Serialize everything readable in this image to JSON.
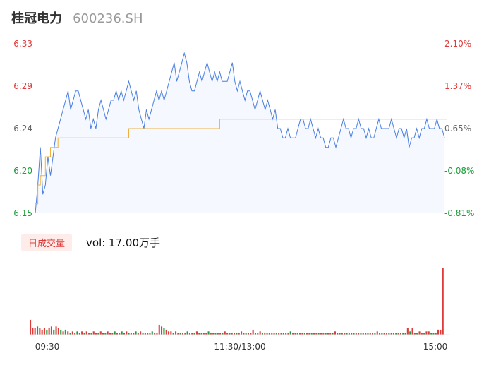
{
  "header": {
    "name": "桂冠电力",
    "code": "600236.SH"
  },
  "volume": {
    "tab_label": "日成交量",
    "readout": "vol: 17.00万手"
  },
  "colors": {
    "price_line": "#4a7fe0",
    "avg_line": "#f0b040",
    "up": "#e03b3b",
    "down": "#1a9e3a",
    "area_fill": "#f5f8ff",
    "prev_close_tick": "#666666"
  },
  "chart_data": {
    "type": "line",
    "title": "",
    "y_left_ticks": [
      "6.33",
      "6.29",
      "6.24",
      "6.20",
      "6.15"
    ],
    "y_right_ticks": [
      "2.10%",
      "1.37%",
      "0.65%",
      "-0.08%",
      "-0.81%"
    ],
    "ylim": [
      6.15,
      6.33
    ],
    "x_ticks": [
      "09:30",
      "11:30/13:00",
      "15:00"
    ],
    "grid": false,
    "series": [
      {
        "values": [
          6.15,
          6.18,
          6.22,
          6.17,
          6.18,
          6.21,
          6.19,
          6.21,
          6.23,
          6.24,
          6.25,
          6.26,
          6.27,
          6.28,
          6.26,
          6.27,
          6.28,
          6.28,
          6.27,
          6.26,
          6.25,
          6.26,
          6.24,
          6.25,
          6.24,
          6.26,
          6.27,
          6.26,
          6.25,
          6.26,
          6.27,
          6.27,
          6.28,
          6.27,
          6.28,
          6.27,
          6.28,
          6.29,
          6.28,
          6.27,
          6.28,
          6.26,
          6.25,
          6.24,
          6.26,
          6.25,
          6.26,
          6.27,
          6.28,
          6.27,
          6.28,
          6.27,
          6.28,
          6.29,
          6.3,
          6.31,
          6.29,
          6.3,
          6.31,
          6.32,
          6.31,
          6.29,
          6.28,
          6.28,
          6.29,
          6.3,
          6.29,
          6.3,
          6.31,
          6.3,
          6.29,
          6.3,
          6.29,
          6.3,
          6.29,
          6.29,
          6.29,
          6.3,
          6.31,
          6.29,
          6.28,
          6.29,
          6.28,
          6.27,
          6.28,
          6.28,
          6.27,
          6.26,
          6.27,
          6.28,
          6.27,
          6.26,
          6.27,
          6.26,
          6.25,
          6.26,
          6.24,
          6.24,
          6.23,
          6.23,
          6.24,
          6.23,
          6.23,
          6.23,
          6.24,
          6.25,
          6.25,
          6.24,
          6.24,
          6.25,
          6.24,
          6.23,
          6.24,
          6.23,
          6.23,
          6.22,
          6.22,
          6.23,
          6.23,
          6.22,
          6.23,
          6.24,
          6.25,
          6.24,
          6.24,
          6.23,
          6.24,
          6.24,
          6.25,
          6.24,
          6.24,
          6.23,
          6.24,
          6.23,
          6.23,
          6.24,
          6.25,
          6.24,
          6.24,
          6.24,
          6.24,
          6.25,
          6.24,
          6.23,
          6.24,
          6.24,
          6.23,
          6.24,
          6.22,
          6.23,
          6.23,
          6.24,
          6.23,
          6.24,
          6.24,
          6.25,
          6.24,
          6.24,
          6.24,
          6.25,
          6.24,
          6.24,
          6.23
        ]
      },
      {
        "values": [
          6.16,
          6.18,
          6.19,
          6.19,
          6.21,
          6.21,
          6.22,
          6.22,
          6.22,
          6.23,
          6.23,
          6.23,
          6.23,
          6.23,
          6.23,
          6.23,
          6.23,
          6.23,
          6.23,
          6.23,
          6.23,
          6.23,
          6.23,
          6.23,
          6.23,
          6.23,
          6.23,
          6.23,
          6.23,
          6.23,
          6.23,
          6.23,
          6.23,
          6.23,
          6.23,
          6.23,
          6.23,
          6.24,
          6.24,
          6.24,
          6.24,
          6.24,
          6.24,
          6.24,
          6.24,
          6.24,
          6.24,
          6.24,
          6.24,
          6.24,
          6.24,
          6.24,
          6.24,
          6.24,
          6.24,
          6.24,
          6.24,
          6.24,
          6.24,
          6.24,
          6.24,
          6.24,
          6.24,
          6.24,
          6.24,
          6.24,
          6.24,
          6.24,
          6.24,
          6.24,
          6.24,
          6.24,
          6.24,
          6.25,
          6.25,
          6.25,
          6.25,
          6.25,
          6.25,
          6.25,
          6.25,
          6.25,
          6.25,
          6.25,
          6.25,
          6.25,
          6.25,
          6.25,
          6.25,
          6.25,
          6.25,
          6.25,
          6.25,
          6.25,
          6.25,
          6.25,
          6.25,
          6.25,
          6.25,
          6.25,
          6.25,
          6.25,
          6.25,
          6.25,
          6.25,
          6.25,
          6.25,
          6.25,
          6.25,
          6.25,
          6.25,
          6.25,
          6.25,
          6.25,
          6.25,
          6.25,
          6.25,
          6.25,
          6.25,
          6.25,
          6.25,
          6.25,
          6.25,
          6.25,
          6.25,
          6.25,
          6.25,
          6.25,
          6.25,
          6.25,
          6.25,
          6.25,
          6.25,
          6.25,
          6.25,
          6.25,
          6.25,
          6.25,
          6.25,
          6.25,
          6.25,
          6.25,
          6.25,
          6.25,
          6.25,
          6.25,
          6.25,
          6.25,
          6.25,
          6.25,
          6.25,
          6.25,
          6.25,
          6.25,
          6.25,
          6.25,
          6.25,
          6.25,
          6.25,
          6.25,
          6.25,
          6.25,
          6.25,
          6.25
        ]
      }
    ],
    "volume_values": [
      9,
      4,
      4,
      5,
      4,
      3,
      4,
      3,
      4,
      5,
      3,
      5,
      4,
      3,
      2,
      3,
      2,
      1,
      2,
      1,
      2,
      1,
      2,
      1,
      2,
      1,
      1,
      2,
      1,
      1,
      2,
      1,
      1,
      2,
      1,
      1,
      2,
      1,
      1,
      2,
      1,
      2,
      1,
      1,
      1,
      2,
      1,
      2,
      1,
      1,
      1,
      1,
      2,
      1,
      1,
      6,
      5,
      4,
      3,
      2,
      2,
      1,
      2,
      1,
      1,
      1,
      1,
      2,
      1,
      1,
      1,
      2,
      1,
      1,
      1,
      1,
      2,
      1,
      1,
      1,
      1,
      1,
      1,
      2,
      1,
      1,
      1,
      1,
      1,
      1,
      2,
      1,
      1,
      1,
      1,
      3,
      1,
      1,
      2,
      1,
      1,
      1,
      1,
      1,
      1,
      1,
      1,
      1,
      1,
      1,
      1,
      2,
      1,
      1,
      1,
      1,
      1,
      1,
      1,
      1,
      1,
      1,
      1,
      1,
      1,
      1,
      1,
      1,
      1,
      1,
      2,
      1,
      1,
      1,
      1,
      1,
      1,
      1,
      1,
      1,
      1,
      1,
      1,
      1,
      1,
      1,
      1,
      1,
      2,
      1,
      1,
      1,
      1,
      1,
      1,
      1,
      1,
      1,
      1,
      1,
      1,
      4,
      2,
      4,
      1,
      1,
      2,
      1,
      1,
      2,
      2,
      1,
      1,
      1,
      3,
      3,
      40
    ],
    "volume_colors": [
      "up",
      "up",
      "up",
      "down",
      "up",
      "up",
      "up",
      "down",
      "up",
      "up",
      "down",
      "up",
      "up",
      "down",
      "up",
      "down",
      "up",
      "down",
      "up",
      "up",
      "down",
      "up",
      "up",
      "down",
      "up",
      "up",
      "down",
      "up",
      "up",
      "down",
      "up",
      "up",
      "down",
      "up",
      "up",
      "up",
      "down",
      "up",
      "up",
      "down",
      "up",
      "up",
      "down",
      "up",
      "up",
      "down",
      "up",
      "up",
      "down",
      "up",
      "up",
      "up",
      "down",
      "up",
      "up",
      "up",
      "up",
      "down",
      "up",
      "up",
      "up",
      "down",
      "up",
      "up",
      "down",
      "up",
      "up",
      "down",
      "up",
      "up",
      "down",
      "up",
      "up",
      "down",
      "up",
      "up",
      "down",
      "up",
      "up",
      "down",
      "up",
      "up",
      "down",
      "up",
      "up",
      "down",
      "up",
      "up",
      "down",
      "up",
      "up",
      "up",
      "down",
      "up",
      "up",
      "up",
      "down",
      "up",
      "up",
      "down",
      "up",
      "up",
      "down",
      "up",
      "up",
      "down",
      "up",
      "up",
      "down",
      "up",
      "up",
      "down",
      "up",
      "up",
      "down",
      "up",
      "up",
      "down",
      "up",
      "up",
      "down",
      "up",
      "up",
      "down",
      "up",
      "up",
      "down",
      "up",
      "up",
      "down",
      "up",
      "up",
      "down",
      "up",
      "up",
      "down",
      "up",
      "up",
      "down",
      "up",
      "up",
      "down",
      "up",
      "up",
      "down",
      "up",
      "up",
      "down",
      "up",
      "up",
      "down",
      "up",
      "up",
      "down",
      "up",
      "up",
      "down",
      "up",
      "up",
      "down",
      "down",
      "up",
      "down",
      "up",
      "up",
      "down",
      "up",
      "up",
      "down",
      "up",
      "up",
      "down",
      "down",
      "up",
      "up"
    ]
  }
}
